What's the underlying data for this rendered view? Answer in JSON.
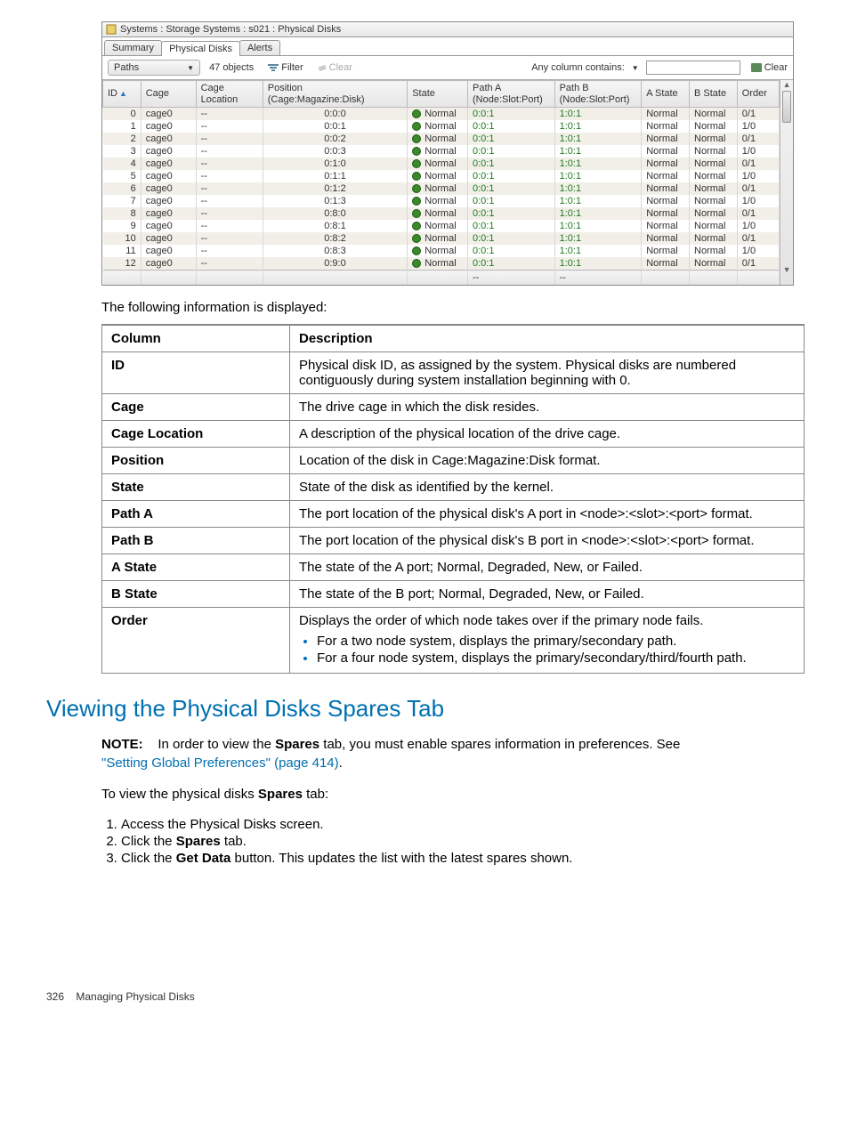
{
  "screenshot": {
    "breadcrumb": "Systems : Storage Systems : s021 : Physical Disks",
    "tabs": [
      "Summary",
      "Physical Disks",
      "Alerts"
    ],
    "active_tab_index": 1,
    "toolbar": {
      "paths_label": "Paths",
      "object_count": "47 objects",
      "filter_label": "Filter",
      "clear_label": "Clear",
      "contains_label": "Any column contains:",
      "clear_right": "Clear"
    },
    "columns": {
      "id": "ID",
      "cage": "Cage",
      "cage_loc": "Cage Location",
      "position": "Position",
      "position_sub": "(Cage:Magazine:Disk)",
      "state": "State",
      "path_a": "Path A",
      "path_a_sub": "(Node:Slot:Port)",
      "path_b": "Path B",
      "path_b_sub": "(Node:Slot:Port)",
      "a_state": "A State",
      "b_state": "B State",
      "order": "Order"
    },
    "rows": [
      {
        "id": "0",
        "cage": "cage0",
        "loc": "--",
        "pos": "0:0:0",
        "state": "Normal",
        "pa": "0:0:1",
        "pb": "1:0:1",
        "as": "Normal",
        "bs": "Normal",
        "order": "0/1"
      },
      {
        "id": "1",
        "cage": "cage0",
        "loc": "--",
        "pos": "0:0:1",
        "state": "Normal",
        "pa": "0:0:1",
        "pb": "1:0:1",
        "as": "Normal",
        "bs": "Normal",
        "order": "1/0"
      },
      {
        "id": "2",
        "cage": "cage0",
        "loc": "--",
        "pos": "0:0:2",
        "state": "Normal",
        "pa": "0:0:1",
        "pb": "1:0:1",
        "as": "Normal",
        "bs": "Normal",
        "order": "0/1"
      },
      {
        "id": "3",
        "cage": "cage0",
        "loc": "--",
        "pos": "0:0:3",
        "state": "Normal",
        "pa": "0:0:1",
        "pb": "1:0:1",
        "as": "Normal",
        "bs": "Normal",
        "order": "1/0"
      },
      {
        "id": "4",
        "cage": "cage0",
        "loc": "--",
        "pos": "0:1:0",
        "state": "Normal",
        "pa": "0:0:1",
        "pb": "1:0:1",
        "as": "Normal",
        "bs": "Normal",
        "order": "0/1"
      },
      {
        "id": "5",
        "cage": "cage0",
        "loc": "--",
        "pos": "0:1:1",
        "state": "Normal",
        "pa": "0:0:1",
        "pb": "1:0:1",
        "as": "Normal",
        "bs": "Normal",
        "order": "1/0"
      },
      {
        "id": "6",
        "cage": "cage0",
        "loc": "--",
        "pos": "0:1:2",
        "state": "Normal",
        "pa": "0:0:1",
        "pb": "1:0:1",
        "as": "Normal",
        "bs": "Normal",
        "order": "0/1"
      },
      {
        "id": "7",
        "cage": "cage0",
        "loc": "--",
        "pos": "0:1:3",
        "state": "Normal",
        "pa": "0:0:1",
        "pb": "1:0:1",
        "as": "Normal",
        "bs": "Normal",
        "order": "1/0"
      },
      {
        "id": "8",
        "cage": "cage0",
        "loc": "--",
        "pos": "0:8:0",
        "state": "Normal",
        "pa": "0:0:1",
        "pb": "1:0:1",
        "as": "Normal",
        "bs": "Normal",
        "order": "0/1"
      },
      {
        "id": "9",
        "cage": "cage0",
        "loc": "--",
        "pos": "0:8:1",
        "state": "Normal",
        "pa": "0:0:1",
        "pb": "1:0:1",
        "as": "Normal",
        "bs": "Normal",
        "order": "1/0"
      },
      {
        "id": "10",
        "cage": "cage0",
        "loc": "--",
        "pos": "0:8:2",
        "state": "Normal",
        "pa": "0:0:1",
        "pb": "1:0:1",
        "as": "Normal",
        "bs": "Normal",
        "order": "0/1"
      },
      {
        "id": "11",
        "cage": "cage0",
        "loc": "--",
        "pos": "0:8:3",
        "state": "Normal",
        "pa": "0:0:1",
        "pb": "1:0:1",
        "as": "Normal",
        "bs": "Normal",
        "order": "1/0"
      },
      {
        "id": "12",
        "cage": "cage0",
        "loc": "--",
        "pos": "0:9:0",
        "state": "Normal",
        "pa": "0:0:1",
        "pb": "1:0:1",
        "as": "Normal",
        "bs": "Normal",
        "order": "0/1"
      }
    ],
    "footer_dash": "--"
  },
  "text": {
    "intro": "The following information is displayed:",
    "desc_header_col": "Column",
    "desc_header_desc": "Description",
    "desc_rows": [
      {
        "name": "ID",
        "desc": "Physical disk ID, as assigned by the system. Physical disks are numbered contiguously during system installation beginning with 0."
      },
      {
        "name": "Cage",
        "desc": "The drive cage in which the disk resides."
      },
      {
        "name": "Cage Location",
        "desc": "A description of the physical location of the drive cage."
      },
      {
        "name": "Position",
        "desc": "Location of the disk in Cage:Magazine:Disk format."
      },
      {
        "name": "State",
        "desc": "State of the disk as identified by the kernel."
      },
      {
        "name": "Path A",
        "desc": "The port location of the physical disk's A port in <node>:<slot>:<port> format."
      },
      {
        "name": "Path B",
        "desc": "The port location of the physical disk's B port in <node>:<slot>:<port> format."
      },
      {
        "name": "A State",
        "desc": "The state of the A port; Normal, Degraded, New, or Failed."
      },
      {
        "name": "B State",
        "desc": "The state of the B port; Normal, Degraded, New, or Failed."
      }
    ],
    "order_name": "Order",
    "order_lead": "Displays the order of which node takes over if the primary node fails.",
    "order_b1": "For a two node system, displays the primary/secondary path.",
    "order_b2": "For a four node system, displays the primary/secondary/third/fourth path.",
    "heading": "Viewing the Physical Disks Spares Tab",
    "note_label": "NOTE:",
    "note_a": "In order to view the ",
    "note_b": "Spares",
    "note_c": " tab, you must enable spares information in preferences. See ",
    "note_link": "\"Setting Global Preferences\" (page 414)",
    "note_d": ".",
    "steps_lead_a": "To view the physical disks ",
    "steps_lead_b": "Spares",
    "steps_lead_c": " tab:",
    "step1": "Access the Physical Disks screen.",
    "step2_a": "Click the ",
    "step2_b": "Spares",
    "step2_c": " tab.",
    "step3_a": "Click the ",
    "step3_b": "Get Data",
    "step3_c": " button. This updates the list with the latest spares shown.",
    "footer_page": "326",
    "footer_title": "Managing Physical Disks"
  }
}
